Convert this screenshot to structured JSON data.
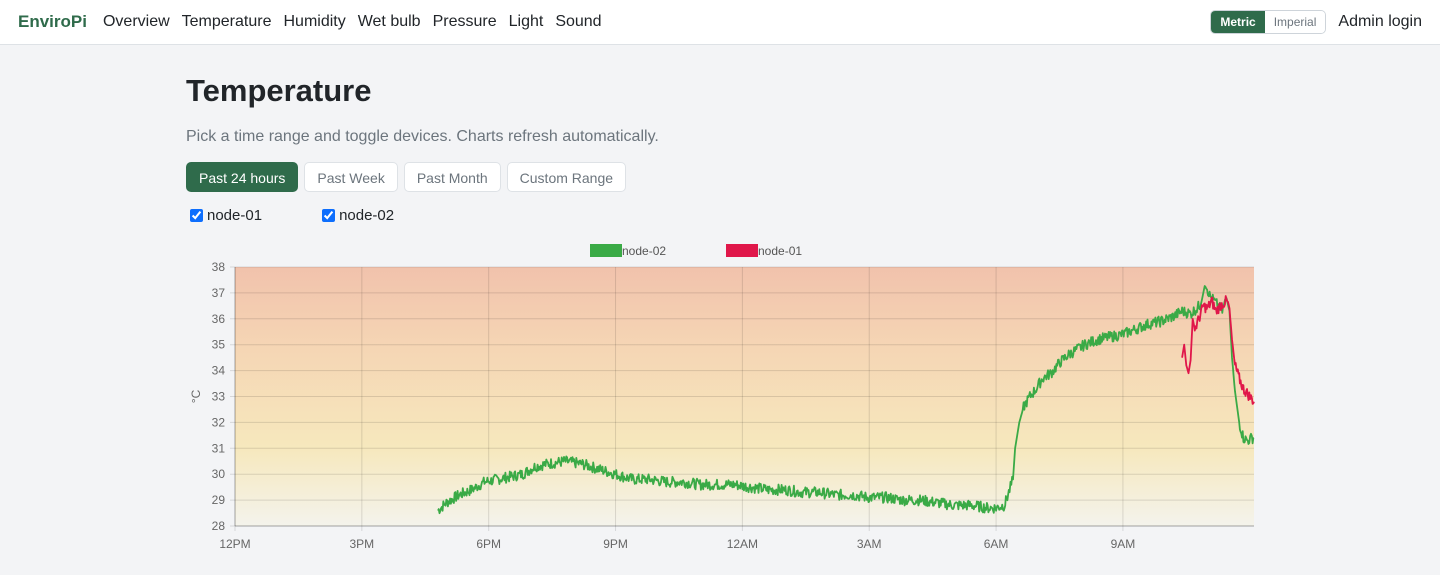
{
  "nav": {
    "brand": "EnviroPi",
    "links": [
      "Overview",
      "Temperature",
      "Humidity",
      "Wet bulb",
      "Pressure",
      "Light",
      "Sound"
    ],
    "units": [
      "Metric",
      "Imperial"
    ],
    "active_unit": "Metric",
    "admin": "Admin login"
  },
  "page": {
    "title": "Temperature",
    "subtitle": "Pick a time range and toggle devices. Charts refresh automatically.",
    "ranges": [
      "Past 24 hours",
      "Past Week",
      "Past Month",
      "Custom Range"
    ],
    "active_range": "Past 24 hours",
    "devices": [
      {
        "label": "node-01",
        "checked": true
      },
      {
        "label": "node-02",
        "checked": true
      }
    ]
  },
  "colors": {
    "brand": "#2f6b4b",
    "node-02": "#3aaa46",
    "node-01": "#e0174a",
    "gradient_top": "#f1c2ac",
    "gradient_bottom": "#f4f3ec"
  },
  "chart_data": {
    "type": "line",
    "ylabel": "°C",
    "xlabel": "",
    "ylim": [
      28,
      38
    ],
    "yticks": [
      "28",
      "29",
      "30",
      "31",
      "32",
      "33",
      "34",
      "35",
      "36",
      "37",
      "38"
    ],
    "xlim_hours": [
      12,
      36.1
    ],
    "xticks": [
      {
        "label": "12PM",
        "hour": 12
      },
      {
        "label": "3PM",
        "hour": 15
      },
      {
        "label": "6PM",
        "hour": 18
      },
      {
        "label": "9PM",
        "hour": 21
      },
      {
        "label": "12AM",
        "hour": 24
      },
      {
        "label": "3AM",
        "hour": 27
      },
      {
        "label": "6AM",
        "hour": 30
      },
      {
        "label": "9AM",
        "hour": 33
      }
    ],
    "grid": true,
    "legend_position": "top",
    "series": [
      {
        "name": "node-02",
        "color": "#3aaa46",
        "points": [
          [
            16.8,
            28.6
          ],
          [
            17.0,
            28.9
          ],
          [
            17.3,
            29.2
          ],
          [
            17.6,
            29.4
          ],
          [
            17.9,
            29.7
          ],
          [
            18.2,
            29.8
          ],
          [
            18.5,
            29.9
          ],
          [
            18.8,
            30.0
          ],
          [
            19.1,
            30.3
          ],
          [
            19.4,
            30.4
          ],
          [
            19.8,
            30.5
          ],
          [
            20.2,
            30.4
          ],
          [
            20.6,
            30.2
          ],
          [
            21.0,
            30.0
          ],
          [
            21.4,
            29.8
          ],
          [
            21.8,
            29.8
          ],
          [
            22.2,
            29.7
          ],
          [
            22.6,
            29.7
          ],
          [
            23.0,
            29.6
          ],
          [
            23.4,
            29.6
          ],
          [
            23.8,
            29.6
          ],
          [
            24.2,
            29.5
          ],
          [
            24.6,
            29.4
          ],
          [
            25.0,
            29.4
          ],
          [
            25.4,
            29.3
          ],
          [
            25.8,
            29.3
          ],
          [
            26.2,
            29.2
          ],
          [
            26.6,
            29.2
          ],
          [
            27.0,
            29.1
          ],
          [
            27.4,
            29.1
          ],
          [
            27.8,
            29.0
          ],
          [
            28.2,
            29.0
          ],
          [
            28.6,
            28.9
          ],
          [
            29.0,
            28.8
          ],
          [
            29.4,
            28.8
          ],
          [
            29.8,
            28.7
          ],
          [
            30.0,
            28.7
          ],
          [
            30.2,
            28.8
          ],
          [
            30.3,
            29.3
          ],
          [
            30.4,
            29.8
          ],
          [
            30.45,
            31.0
          ],
          [
            30.55,
            32.0
          ],
          [
            30.65,
            32.6
          ],
          [
            30.8,
            33.0
          ],
          [
            30.95,
            33.3
          ],
          [
            31.1,
            33.7
          ],
          [
            31.3,
            33.9
          ],
          [
            31.5,
            34.3
          ],
          [
            31.7,
            34.6
          ],
          [
            31.9,
            34.8
          ],
          [
            32.1,
            35.0
          ],
          [
            32.4,
            35.2
          ],
          [
            32.7,
            35.3
          ],
          [
            33.0,
            35.4
          ],
          [
            33.3,
            35.6
          ],
          [
            33.6,
            35.8
          ],
          [
            33.9,
            35.9
          ],
          [
            34.2,
            36.1
          ],
          [
            34.4,
            36.3
          ],
          [
            34.6,
            36.2
          ],
          [
            34.75,
            36.4
          ],
          [
            34.85,
            36.6
          ],
          [
            34.95,
            37.4
          ],
          [
            35.05,
            36.9
          ],
          [
            35.2,
            36.6
          ],
          [
            35.35,
            36.3
          ],
          [
            35.45,
            36.8
          ],
          [
            35.52,
            36.3
          ],
          [
            35.58,
            34.5
          ],
          [
            35.65,
            33.2
          ],
          [
            35.75,
            32.0
          ],
          [
            35.85,
            31.4
          ],
          [
            35.95,
            31.3
          ],
          [
            36.05,
            31.4
          ],
          [
            36.1,
            31.4
          ]
        ]
      },
      {
        "name": "node-01",
        "color": "#e0174a",
        "points": [
          [
            34.4,
            34.5
          ],
          [
            34.45,
            35.0
          ],
          [
            34.5,
            34.2
          ],
          [
            34.55,
            33.9
          ],
          [
            34.6,
            34.4
          ],
          [
            34.65,
            36.0
          ],
          [
            34.7,
            35.6
          ],
          [
            34.8,
            36.0
          ],
          [
            34.9,
            36.5
          ],
          [
            35.0,
            36.4
          ],
          [
            35.1,
            36.7
          ],
          [
            35.2,
            36.3
          ],
          [
            35.3,
            36.5
          ],
          [
            35.45,
            36.7
          ],
          [
            35.52,
            36.4
          ],
          [
            35.58,
            35.2
          ],
          [
            35.65,
            34.2
          ],
          [
            35.75,
            33.7
          ],
          [
            35.85,
            33.3
          ],
          [
            35.95,
            33.1
          ],
          [
            36.05,
            32.9
          ],
          [
            36.1,
            32.8
          ]
        ]
      }
    ]
  }
}
